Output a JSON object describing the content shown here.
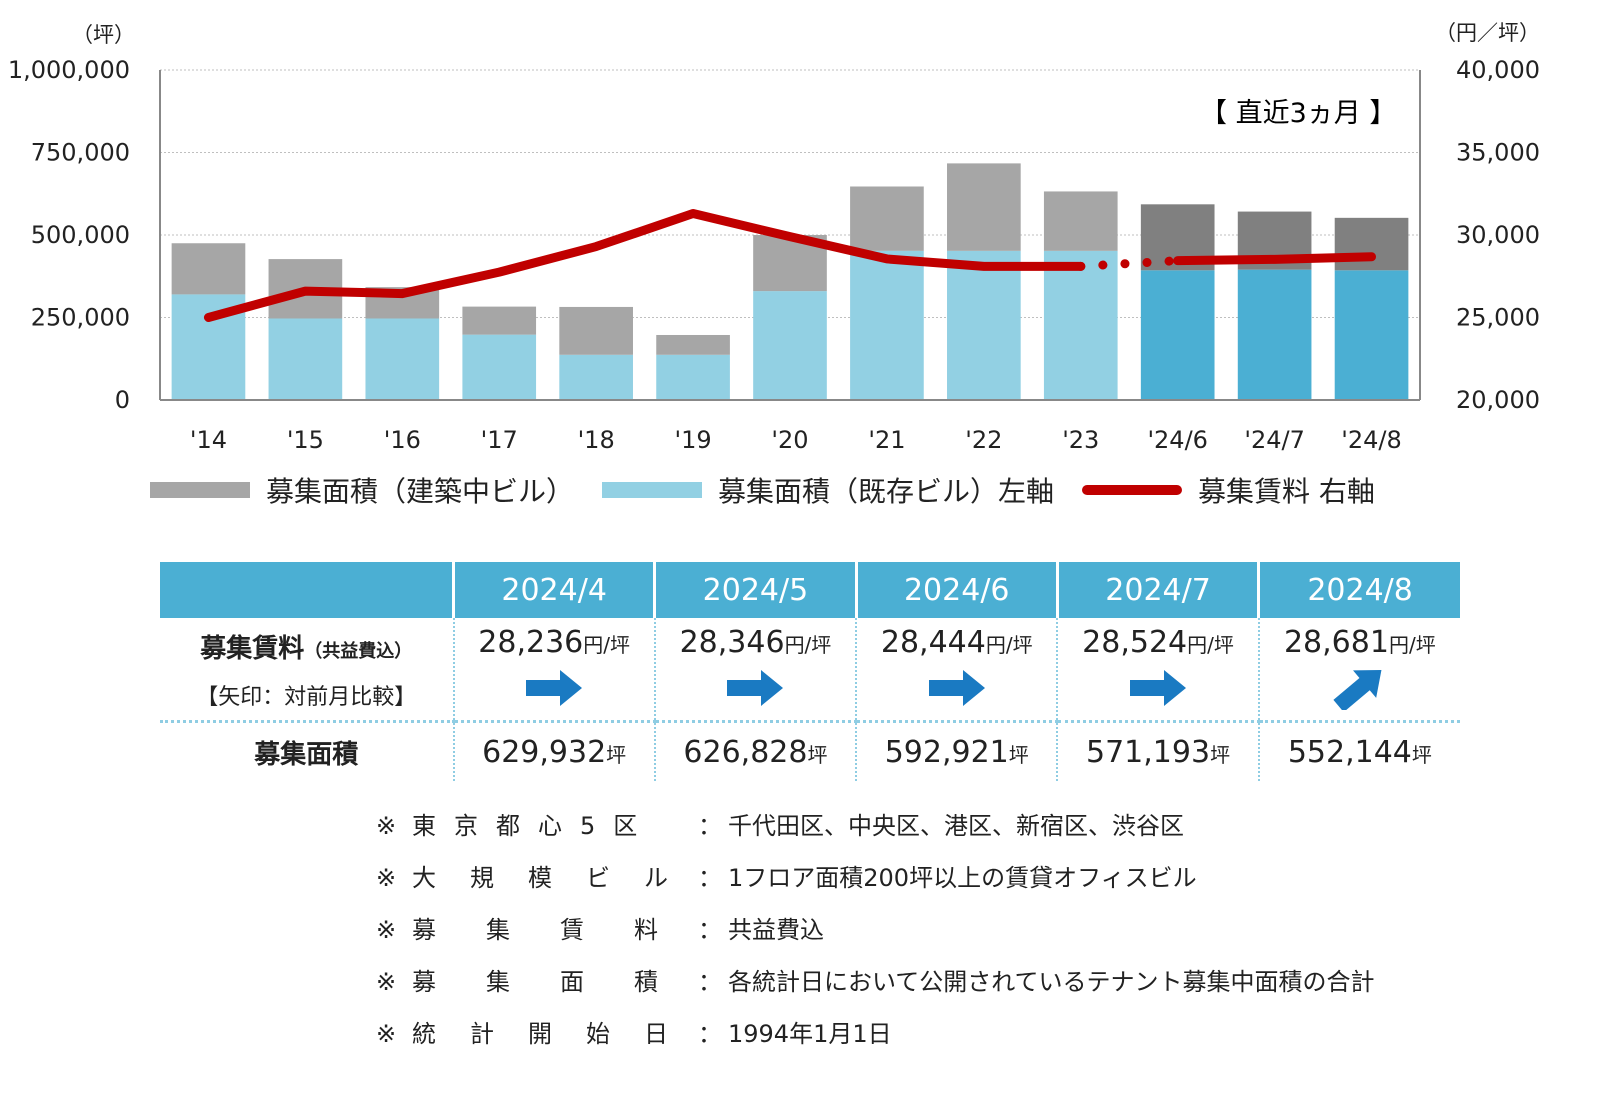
{
  "chart_data": {
    "type": "bar+line",
    "categories": [
      "'14",
      "'15",
      "'16",
      "'17",
      "'18",
      "'19",
      "'20",
      "'21",
      "'22",
      "'23",
      "'24/6",
      "'24/7",
      "'24/8"
    ],
    "series": [
      {
        "name": "募集面積（既存ビル）左軸",
        "axis": "left",
        "type": "stacked-bar",
        "values": [
          320000,
          247000,
          247000,
          198000,
          137000,
          137000,
          330000,
          452000,
          452000,
          452000,
          393000,
          395000,
          393000
        ]
      },
      {
        "name": "募集面積（建築中ビル）",
        "axis": "left",
        "type": "stacked-bar",
        "values": [
          155000,
          180000,
          95000,
          85000,
          145000,
          60000,
          170000,
          195000,
          265000,
          180000,
          200000,
          176000,
          159000
        ]
      },
      {
        "name": "募集賃料 右軸",
        "axis": "right",
        "type": "line",
        "values": [
          25000,
          26600,
          26450,
          27750,
          29300,
          31300,
          29900,
          28550,
          28100,
          28100,
          28444,
          28524,
          28681
        ]
      }
    ],
    "left_axis": {
      "unit": "（坪）",
      "range": [
        0,
        1000000
      ],
      "ticks": [
        "0",
        "250,000",
        "500,000",
        "750,000",
        "1,000,000"
      ]
    },
    "right_axis": {
      "unit": "（円／坪）",
      "range": [
        20000,
        40000
      ],
      "ticks": [
        "20,000",
        "25,000",
        "30,000",
        "35,000",
        "40,000"
      ]
    },
    "annotation": "【 直近3ヵ月 】",
    "colors": {
      "built_gray": "#a6a6a6",
      "recent_gray": "#808080",
      "existing_light": "#92d0e3",
      "existing_recent": "#4bafd3",
      "rent_line": "#c00000"
    }
  },
  "legend": {
    "construction": "募集面積（建築中ビル）",
    "existing": "募集面積（既存ビル）左軸",
    "rent": "募集賃料 右軸"
  },
  "table": {
    "months": [
      "2024/4",
      "2024/5",
      "2024/6",
      "2024/7",
      "2024/8"
    ],
    "rent_label": "募集賃料",
    "rent_sub": "（共益費込）",
    "arrow_note": "【矢印：対前月比較】",
    "rent_values": [
      "28,236",
      "28,346",
      "28,444",
      "28,524",
      "28,681"
    ],
    "rent_unit": "円/坪",
    "arrows": [
      "flat",
      "flat",
      "flat",
      "flat",
      "up"
    ],
    "area_label": "募集面積",
    "area_values": [
      "629,932",
      "626,828",
      "592,921",
      "571,193",
      "552,144"
    ],
    "area_unit": "坪"
  },
  "notes": [
    {
      "mark": "※",
      "label": "東京都心5区",
      "colon": "：",
      "text": "千代田区、中央区、港区、新宿区、渋谷区"
    },
    {
      "mark": "※",
      "label": "大規模ビル",
      "colon": "：",
      "text": "1フロア面積200坪以上の賃貸オフィスビル"
    },
    {
      "mark": "※",
      "label": "募集賃料",
      "colon": "：",
      "text": "共益費込"
    },
    {
      "mark": "※",
      "label": "募集面積",
      "colon": "：",
      "text": "各統計日において公開されているテナント募集中面積の合計"
    },
    {
      "mark": "※",
      "label": "統計開始日",
      "colon": "：",
      "text": "1994年1月1日"
    }
  ]
}
